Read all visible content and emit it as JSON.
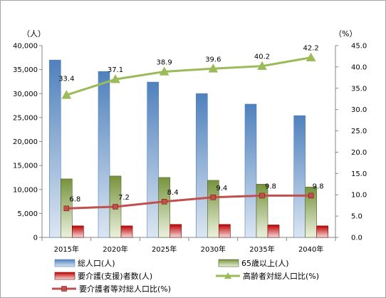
{
  "chart_data": {
    "type": "bar",
    "categories": [
      "2015年",
      "2020年",
      "2025年",
      "2030年",
      "2035年",
      "2040年"
    ],
    "y_left": {
      "unit": "（人）",
      "ylim": [
        0,
        40000
      ],
      "ticks": [
        "0",
        "5,000",
        "10,000",
        "15,000",
        "20,000",
        "25,000",
        "30,000",
        "35,000",
        "40,000"
      ]
    },
    "y_right": {
      "unit": "（%）",
      "ylim": [
        0,
        45
      ],
      "ticks": [
        "0.0",
        "5.0",
        "10.0",
        "15.0",
        "20.0",
        "25.0",
        "30.0",
        "35.0",
        "40.0",
        "45.0"
      ]
    },
    "grid": false,
    "legend_position": "bottom",
    "series": [
      {
        "name": "総人口(人)",
        "kind": "bar",
        "axis": "left",
        "color": "#4f81bd",
        "values": [
          37000,
          34600,
          32400,
          30000,
          27800,
          25400
        ]
      },
      {
        "name": "65歳以上(人)",
        "kind": "bar",
        "axis": "left",
        "color": "#9bbb59",
        "values": [
          12200,
          12800,
          12500,
          11900,
          11100,
          10500
        ]
      },
      {
        "name": "要介護(支援)者数(人)",
        "kind": "bar",
        "axis": "left",
        "color": "#c0504d",
        "values": [
          2400,
          2400,
          2700,
          2700,
          2600,
          2400
        ]
      },
      {
        "name": "高齢者対総人口比(%)",
        "kind": "line",
        "axis": "right",
        "color": "#9bbb59",
        "marker": "triangle",
        "values": [
          33.4,
          37.1,
          38.9,
          39.6,
          40.2,
          42.2
        ],
        "labels": [
          "33.4",
          "37.1",
          "38.9",
          "39.6",
          "40.2",
          "42.2"
        ]
      },
      {
        "name": "要介護者等対総人口比(%)",
        "kind": "line",
        "axis": "right",
        "color": "#c0504d",
        "marker": "square",
        "values": [
          6.8,
          7.2,
          8.4,
          9.4,
          9.8,
          9.8
        ],
        "labels": [
          "6.8",
          "7.2",
          "8.4",
          "9.4",
          "9.8",
          "9.8"
        ]
      }
    ]
  }
}
